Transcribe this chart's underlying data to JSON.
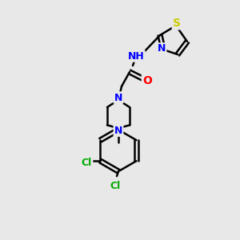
{
  "bg_color": "#e8e8e8",
  "bond_color": "#000000",
  "bond_lw": 1.8,
  "atom_colors": {
    "N": "#0000ff",
    "O": "#ff0000",
    "S": "#cccc00",
    "Cl": "#00aa00",
    "C": "#000000",
    "H": "#000000"
  },
  "font_size": 9,
  "title": ""
}
